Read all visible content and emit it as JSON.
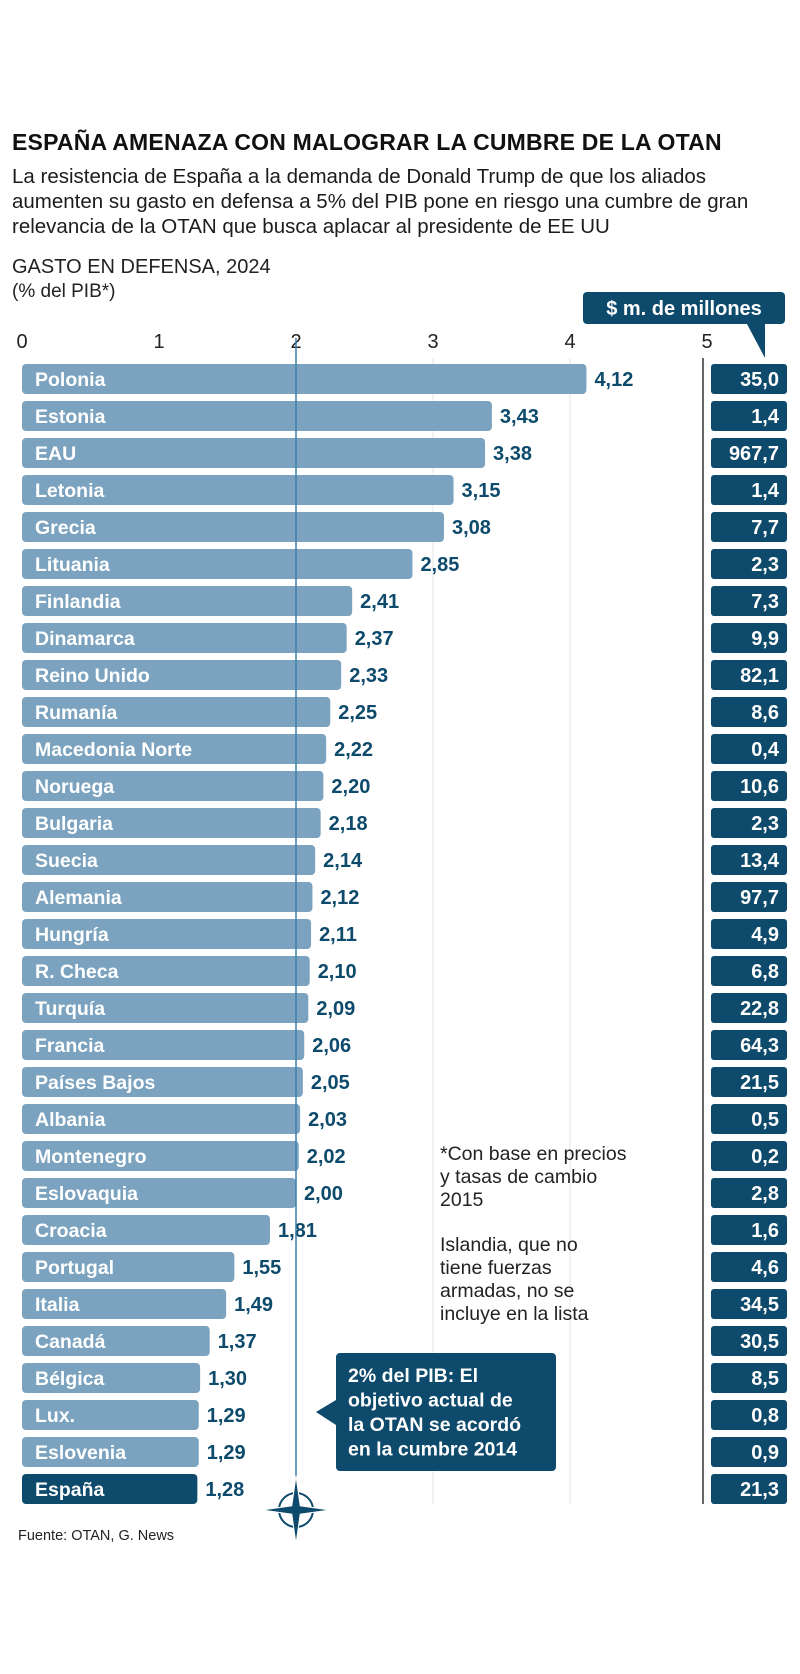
{
  "title": "ESPAÑA AMENAZA CON MALOGRAR LA CUMBRE DE LA OTAN",
  "subtitle": "La resistencia de España a la demanda de Donald Trump de que los aliados aumenten su gasto en defensa a 5% del PIB pone en riesgo una cumbre de gran relevancia de la OTAN que busca aplacar al presidente de EE UU",
  "section_title": "GASTO EN DEFENSA, 2024",
  "section_unit": "(% del PIB*)",
  "source": "Fuente: OTAN, G. News",
  "colors": {
    "bar": "#7ba3bf",
    "bar_highlight": "#0d4a6b",
    "value_text": "#0d4a6b",
    "box": "#0d4a6b",
    "reference_line": "#3f7fa8"
  },
  "chart_data": {
    "type": "bar",
    "orientation": "horizontal",
    "title": "GASTO EN DEFENSA, 2024",
    "xlabel": "(% del PIB*)",
    "xlim": [
      0,
      5
    ],
    "x_ticks": [
      "0",
      "1",
      "2",
      "3",
      "4",
      "5"
    ],
    "categories": [
      "Polonia",
      "Estonia",
      "EAU",
      "Letonia",
      "Grecia",
      "Lituania",
      "Finlandia",
      "Dinamarca",
      "Reino Unido",
      "Rumanía",
      "Macedonia Norte",
      "Noruega",
      "Bulgaria",
      "Suecia",
      "Alemania",
      "Hungría",
      "R. Checa",
      "Turquía",
      "Francia",
      "Países Bajos",
      "Albania",
      "Montenegro",
      "Eslovaquia",
      "Croacia",
      "Portugal",
      "Italia",
      "Canadá",
      "Bélgica",
      "Lux.",
      "Eslovenia",
      "España"
    ],
    "values": [
      4.12,
      3.43,
      3.38,
      3.15,
      3.08,
      2.85,
      2.41,
      2.37,
      2.33,
      2.25,
      2.22,
      2.2,
      2.18,
      2.14,
      2.12,
      2.11,
      2.1,
      2.09,
      2.06,
      2.05,
      2.03,
      2.02,
      2.0,
      1.81,
      1.55,
      1.49,
      1.37,
      1.3,
      1.29,
      1.29,
      1.28
    ],
    "value_labels": [
      "4,12",
      "3,43",
      "3,38",
      "3,15",
      "3,08",
      "2,85",
      "2,41",
      "2,37",
      "2,33",
      "2,25",
      "2,22",
      "2,20",
      "2,18",
      "2,14",
      "2,12",
      "2,11",
      "2,10",
      "2,09",
      "2,06",
      "2,05",
      "2,03",
      "2,02",
      "2,00",
      "1,81",
      "1,55",
      "1,49",
      "1,37",
      "1,30",
      "1,29",
      "1,29",
      "1,28"
    ],
    "highlight": "España",
    "reference_line": 2,
    "secondary_header": "$ m. de millones",
    "secondary_values": [
      "35,0",
      "1,4",
      "967,7",
      "1,4",
      "7,7",
      "2,3",
      "7,3",
      "9,9",
      "82,1",
      "8,6",
      "0,4",
      "10,6",
      "2,3",
      "13,4",
      "97,7",
      "4,9",
      "6,8",
      "22,8",
      "64,3",
      "21,5",
      "0,5",
      "0,2",
      "2,8",
      "1,6",
      "4,6",
      "34,5",
      "30,5",
      "8,5",
      "0,8",
      "0,9",
      "21,3"
    ],
    "notes": [
      [
        "*Con base en precios",
        "y tasas de cambio",
        "2015"
      ],
      [
        "Islandia, que no",
        "tiene fuerzas",
        "armadas, no se",
        "incluye en la lista"
      ]
    ],
    "callout": [
      "2% del PIB: El",
      "objetivo actual de",
      "la OTAN se acordó",
      "en la cumbre 2014"
    ]
  }
}
